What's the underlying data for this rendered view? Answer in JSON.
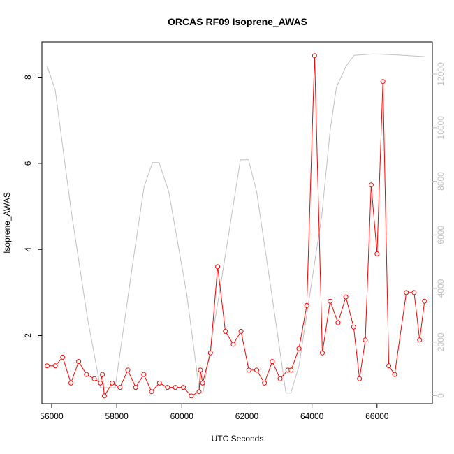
{
  "chart_data": {
    "type": "line",
    "title": "ORCAS RF09 Isoprene_AWAS",
    "xlabel": "UTC Seconds",
    "ylabel": "Isoprene_AWAS",
    "xlim": [
      55700,
      67700
    ],
    "ylim": [
      0.42,
      8.82
    ],
    "y2lim": [
      -300,
      13200
    ],
    "x_ticks": [
      56000,
      58000,
      60000,
      62000,
      64000,
      66000
    ],
    "x_tick_labels": [
      "56000",
      "58000",
      "60000",
      "62000",
      "64000",
      "66000"
    ],
    "y_ticks": [
      2,
      4,
      6,
      8
    ],
    "y_tick_labels": [
      "2",
      "4",
      "6",
      "8"
    ],
    "y2_ticks": [
      0,
      2000,
      4000,
      6000,
      8000,
      10000,
      12000
    ],
    "y2_tick_labels": [
      "0",
      "2000",
      "4000",
      "6000",
      "8000",
      "10000",
      "12000"
    ],
    "grid": false,
    "series": [
      {
        "axis": "left",
        "color": "#ff0000",
        "markers": "open-circle",
        "points": [
          {
            "x": 55860,
            "y": 1.3
          },
          {
            "x": 56110,
            "y": 1.3
          },
          {
            "x": 56340,
            "y": 1.5
          },
          {
            "x": 56590,
            "y": 0.9
          },
          {
            "x": 56830,
            "y": 1.4
          },
          {
            "x": 57070,
            "y": 1.1
          },
          {
            "x": 57310,
            "y": 1.0
          },
          {
            "x": 57500,
            "y": 0.9
          },
          {
            "x": 57560,
            "y": 1.1
          },
          {
            "x": 57620,
            "y": 0.6
          },
          {
            "x": 57860,
            "y": 0.9
          },
          {
            "x": 58100,
            "y": 0.8
          },
          {
            "x": 58340,
            "y": 1.2
          },
          {
            "x": 58580,
            "y": 0.8
          },
          {
            "x": 58830,
            "y": 1.1
          },
          {
            "x": 59070,
            "y": 0.7
          },
          {
            "x": 59310,
            "y": 0.9
          },
          {
            "x": 59560,
            "y": 0.8
          },
          {
            "x": 59800,
            "y": 0.8
          },
          {
            "x": 60050,
            "y": 0.8
          },
          {
            "x": 60290,
            "y": 0.6
          },
          {
            "x": 60530,
            "y": 0.7
          },
          {
            "x": 60570,
            "y": 1.2
          },
          {
            "x": 60640,
            "y": 0.9
          },
          {
            "x": 60880,
            "y": 1.6
          },
          {
            "x": 61100,
            "y": 3.6
          },
          {
            "x": 61340,
            "y": 2.1
          },
          {
            "x": 61580,
            "y": 1.8
          },
          {
            "x": 61820,
            "y": 2.1
          },
          {
            "x": 62060,
            "y": 1.2
          },
          {
            "x": 62300,
            "y": 1.2
          },
          {
            "x": 62540,
            "y": 0.9
          },
          {
            "x": 62780,
            "y": 1.4
          },
          {
            "x": 63020,
            "y": 1.0
          },
          {
            "x": 63260,
            "y": 1.2
          },
          {
            "x": 63360,
            "y": 1.2
          },
          {
            "x": 63600,
            "y": 1.7
          },
          {
            "x": 63840,
            "y": 2.7
          },
          {
            "x": 64080,
            "y": 8.5
          },
          {
            "x": 64320,
            "y": 1.6
          },
          {
            "x": 64560,
            "y": 2.8
          },
          {
            "x": 64800,
            "y": 2.3
          },
          {
            "x": 65040,
            "y": 2.9
          },
          {
            "x": 65280,
            "y": 2.2
          },
          {
            "x": 65460,
            "y": 1.0
          },
          {
            "x": 65640,
            "y": 1.9
          },
          {
            "x": 65820,
            "y": 5.5
          },
          {
            "x": 66000,
            "y": 3.9
          },
          {
            "x": 66180,
            "y": 7.9
          },
          {
            "x": 66360,
            "y": 1.3
          },
          {
            "x": 66540,
            "y": 1.1
          },
          {
            "x": 66900,
            "y": 3.0
          },
          {
            "x": 67140,
            "y": 3.0
          },
          {
            "x": 67310,
            "y": 1.9
          },
          {
            "x": 67460,
            "y": 2.8
          }
        ]
      },
      {
        "axis": "right",
        "color": "#c0c0c0",
        "markers": "none",
        "points": [
          {
            "x": 55860,
            "y": 12300
          },
          {
            "x": 56110,
            "y": 11400
          },
          {
            "x": 56600,
            "y": 6900
          },
          {
            "x": 57100,
            "y": 2900
          },
          {
            "x": 57500,
            "y": 300
          },
          {
            "x": 57950,
            "y": 300
          },
          {
            "x": 58500,
            "y": 5000
          },
          {
            "x": 58840,
            "y": 7800
          },
          {
            "x": 59100,
            "y": 8700
          },
          {
            "x": 59300,
            "y": 8700
          },
          {
            "x": 59600,
            "y": 7600
          },
          {
            "x": 60150,
            "y": 3800
          },
          {
            "x": 60550,
            "y": 100
          },
          {
            "x": 60650,
            "y": 100
          },
          {
            "x": 61150,
            "y": 3800
          },
          {
            "x": 61800,
            "y": 8800
          },
          {
            "x": 62050,
            "y": 8800
          },
          {
            "x": 62300,
            "y": 7600
          },
          {
            "x": 62800,
            "y": 3500
          },
          {
            "x": 63200,
            "y": 100
          },
          {
            "x": 63350,
            "y": 100
          },
          {
            "x": 63600,
            "y": 1100
          },
          {
            "x": 64000,
            "y": 4300
          },
          {
            "x": 64300,
            "y": 6700
          },
          {
            "x": 64560,
            "y": 9900
          },
          {
            "x": 64750,
            "y": 11500
          },
          {
            "x": 65050,
            "y": 12300
          },
          {
            "x": 65300,
            "y": 12700
          },
          {
            "x": 65900,
            "y": 12750
          },
          {
            "x": 66500,
            "y": 12720
          },
          {
            "x": 67460,
            "y": 12650
          }
        ]
      }
    ]
  }
}
